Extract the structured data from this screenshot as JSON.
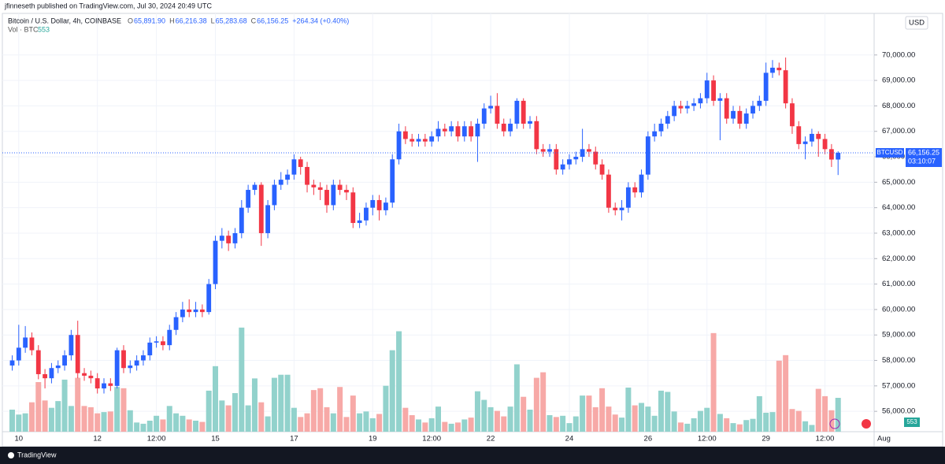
{
  "header": "jfinneseth published on TradingView.com, Jul 30, 2024 20:49 UTC",
  "footer": "TradingView",
  "chart_data": {
    "type": "candlestick",
    "symbol_title": "Bitcoin / U.S. Dollar, 4h, COINBASE",
    "ohlc_legend": [
      {
        "label": "O",
        "value": "65,891.90"
      },
      {
        "label": "H",
        "value": "66,216.38"
      },
      {
        "label": "L",
        "value": "65,283.68"
      },
      {
        "label": "C",
        "value": "66,156.25"
      }
    ],
    "change": "+264.34 (+0.40%)",
    "volume_title": "Vol · BTC",
    "currency": "USD",
    "last_price_symbol": "BTCUSD",
    "last_price_label": "66,156.25",
    "countdown": "03:10:07",
    "up_color": "#2962ff",
    "down_color": "#f23645",
    "volume_up_color": "#92d2cc",
    "volume_down_color": "#f7a9a7",
    "open": [
      57800,
      58000,
      58500,
      58900,
      58400,
      57460,
      57300,
      57700,
      57800,
      58200,
      59000,
      57500,
      57400,
      57300,
      56900,
      57100,
      57000,
      58400,
      57700,
      57800,
      58000,
      58200,
      58700,
      58750,
      58600,
      59200,
      59700,
      60000,
      59900,
      60000,
      59900,
      61000,
      62700,
      62900,
      62600,
      63000,
      64000,
      64700,
      64900,
      63000,
      64100,
      64900,
      65100,
      65300,
      65900,
      65600,
      64900,
      64800,
      64700,
      64100,
      64900,
      64700,
      64600,
      63400,
      63500,
      64000,
      64300,
      63900,
      64200,
      65900,
      67000,
      66700,
      66600,
      66700,
      66600,
      66800,
      67100,
      67000,
      67200,
      66800,
      67200,
      66800,
      67300,
      67900,
      68000,
      67300,
      67000,
      67300,
      68200,
      67300,
      67400,
      66300,
      66200,
      66300,
      65500,
      65700,
      65900,
      66000,
      66300,
      66200,
      65700,
      65300,
      64000,
      63900,
      64000,
      64800,
      64600,
      65300,
      66800,
      67000,
      67300,
      67600,
      68000,
      67900,
      68000,
      68100,
      68300,
      69000,
      68200,
      68300,
      67500,
      67800,
      67300,
      67700,
      68000,
      68200,
      69300,
      69500,
      69400,
      68100,
      67200,
      66500,
      66600,
      66900,
      66700,
      66300,
      65891.9
    ],
    "high": [
      58200,
      59400,
      59350,
      59100,
      58600,
      57660,
      57900,
      58000,
      58400,
      59200,
      59560,
      57700,
      57600,
      57500,
      57300,
      57300,
      58500,
      58600,
      58000,
      58200,
      58400,
      58900,
      58950,
      58950,
      59400,
      59900,
      60300,
      60400,
      60300,
      60200,
      61200,
      62900,
      63200,
      63100,
      63200,
      64300,
      64900,
      65000,
      65000,
      64300,
      65100,
      65400,
      65500,
      66100,
      66000,
      65800,
      65100,
      65000,
      64900,
      65100,
      65100,
      64900,
      64800,
      63800,
      64200,
      64500,
      64500,
      64400,
      66100,
      67300,
      67200,
      66900,
      66900,
      66900,
      67000,
      67400,
      67300,
      67400,
      67400,
      67400,
      67400,
      67500,
      68100,
      68400,
      68500,
      67500,
      67500,
      68300,
      68300,
      67600,
      67600,
      66500,
      66500,
      66500,
      65900,
      66100,
      66200,
      67100,
      66500,
      66400,
      65900,
      65500,
      64200,
      64300,
      65000,
      65000,
      65500,
      67000,
      67300,
      67500,
      67800,
      68200,
      68200,
      68200,
      68300,
      68500,
      69300,
      69200,
      68500,
      68500,
      68000,
      68000,
      67900,
      68200,
      68400,
      69700,
      69800,
      69700,
      69900,
      68300,
      67400,
      66800,
      67100,
      67000,
      66900,
      66500,
      66216.38
    ],
    "low": [
      57600,
      57800,
      58300,
      58200,
      57260,
      56900,
      57100,
      57500,
      57600,
      58000,
      57300,
      57200,
      57100,
      56700,
      56700,
      56800,
      56900,
      57500,
      57500,
      57600,
      57800,
      58000,
      58500,
      58400,
      58400,
      59000,
      59500,
      59700,
      59700,
      59700,
      59800,
      60800,
      62400,
      62300,
      62400,
      62800,
      63800,
      64500,
      62500,
      62800,
      63900,
      64700,
      64900,
      65100,
      65300,
      64600,
      64500,
      64300,
      63800,
      63900,
      64500,
      64300,
      63200,
      63200,
      63300,
      63700,
      63500,
      63700,
      64000,
      65700,
      66500,
      66400,
      66400,
      66400,
      66400,
      66600,
      66800,
      66800,
      66600,
      66600,
      66600,
      65800,
      67100,
      67700,
      67100,
      66800,
      66800,
      67100,
      67100,
      67100,
      66100,
      66000,
      66000,
      65300,
      65300,
      65500,
      65700,
      65800,
      66000,
      65500,
      65100,
      63800,
      63700,
      63500,
      63800,
      64400,
      64400,
      65100,
      66600,
      66800,
      67100,
      67400,
      67700,
      67700,
      67800,
      67900,
      68100,
      68000,
      66650,
      67300,
      67300,
      67100,
      67100,
      67500,
      67800,
      68000,
      69100,
      69200,
      67900,
      66900,
      66300,
      65900,
      66400,
      66000,
      66100,
      65600,
      65283.68
    ],
    "close": [
      58000,
      58500,
      58900,
      58400,
      57460,
      57300,
      57700,
      57800,
      58200,
      59000,
      57500,
      57400,
      57300,
      56900,
      57100,
      57000,
      58400,
      57700,
      57800,
      58000,
      58200,
      58700,
      58750,
      58600,
      59200,
      59700,
      60000,
      59900,
      60000,
      59900,
      61000,
      62700,
      62900,
      62600,
      63000,
      64000,
      64700,
      64900,
      63000,
      64100,
      64900,
      65100,
      65300,
      65900,
      65600,
      64900,
      64800,
      64700,
      64100,
      64900,
      64700,
      64600,
      63400,
      63500,
      64000,
      64300,
      63900,
      64200,
      65900,
      67000,
      66700,
      66600,
      66700,
      66600,
      66800,
      67100,
      67000,
      67200,
      66800,
      67200,
      66800,
      67300,
      67900,
      68000,
      67300,
      67000,
      67300,
      68200,
      67300,
      67400,
      66300,
      66200,
      66300,
      65500,
      65700,
      65900,
      66000,
      66300,
      66200,
      65700,
      65300,
      64000,
      63900,
      64000,
      64800,
      64600,
      65300,
      66800,
      67000,
      67300,
      67600,
      68000,
      67900,
      68000,
      68100,
      68300,
      69000,
      68200,
      68300,
      67500,
      67800,
      67300,
      67700,
      68000,
      68200,
      69300,
      69500,
      69400,
      68100,
      67200,
      66500,
      66600,
      66900,
      66700,
      66300,
      65891.9,
      66156.25
    ],
    "volume": [
      360,
      280,
      300,
      480,
      810,
      510,
      390,
      500,
      850,
      420,
      880,
      420,
      400,
      300,
      320,
      330,
      730,
      710,
      350,
      150,
      130,
      180,
      260,
      200,
      420,
      300,
      260,
      200,
      180,
      160,
      670,
      1070,
      510,
      430,
      630,
      1700,
      430,
      870,
      480,
      250,
      880,
      930,
      930,
      390,
      240,
      300,
      680,
      710,
      400,
      300,
      730,
      240,
      590,
      300,
      330,
      220,
      290,
      750,
      1330,
      1640,
      390,
      270,
      200,
      150,
      220,
      410,
      160,
      130,
      150,
      200,
      230,
      660,
      520,
      400,
      340,
      250,
      410,
      1100,
      570,
      360,
      880,
      970,
      270,
      240,
      260,
      140,
      250,
      590,
      590,
      400,
      710,
      410,
      280,
      230,
      720,
      430,
      470,
      410,
      260,
      670,
      650,
      330,
      150,
      130,
      220,
      340,
      390,
      1610,
      290,
      220,
      140,
      120,
      190,
      210,
      580,
      310,
      320,
      1160,
      1250,
      370,
      340,
      170,
      110,
      700,
      580,
      350,
      553
    ],
    "xlim": [
      -1.5,
      131.5
    ],
    "xticks": [
      {
        "value": 1,
        "label": "10"
      },
      {
        "value": 13,
        "label": "12"
      },
      {
        "value": 22,
        "label": "12:00"
      },
      {
        "value": 31,
        "label": "15"
      },
      {
        "value": 43,
        "label": "17"
      },
      {
        "value": 55,
        "label": "19"
      },
      {
        "value": 64,
        "label": "12:00"
      },
      {
        "value": 73,
        "label": "22"
      },
      {
        "value": 85,
        "label": "24"
      },
      {
        "value": 97,
        "label": "26"
      },
      {
        "value": 106,
        "label": "12:00"
      },
      {
        "value": 115,
        "label": "29"
      },
      {
        "value": 124,
        "label": "12:00"
      },
      {
        "value": 133,
        "label": "Aug"
      }
    ],
    "ylim": [
      55200,
      71850
    ],
    "yticks": [
      {
        "value": 56000,
        "label": "56,000.00"
      },
      {
        "value": 57000,
        "label": "57,000.00"
      },
      {
        "value": 58000,
        "label": "58,000.00"
      },
      {
        "value": 59000,
        "label": "59,000.00"
      },
      {
        "value": 60000,
        "label": "60,000.00"
      },
      {
        "value": 61000,
        "label": "61,000.00"
      },
      {
        "value": 62000,
        "label": "62,000.00"
      },
      {
        "value": 63000,
        "label": "63,000.00"
      },
      {
        "value": 64000,
        "label": "64,000.00"
      },
      {
        "value": 65000,
        "label": "65,000.00"
      },
      {
        "value": 66000,
        "label": "66,000.00"
      },
      {
        "value": 67000,
        "label": "67,000.00"
      },
      {
        "value": 68000,
        "label": "68,000.00"
      },
      {
        "value": 69000,
        "label": "69,000.00"
      },
      {
        "value": 70000,
        "label": "70,000.00"
      }
    ],
    "y2lim": [
      0,
      6920
    ],
    "grid": true
  }
}
